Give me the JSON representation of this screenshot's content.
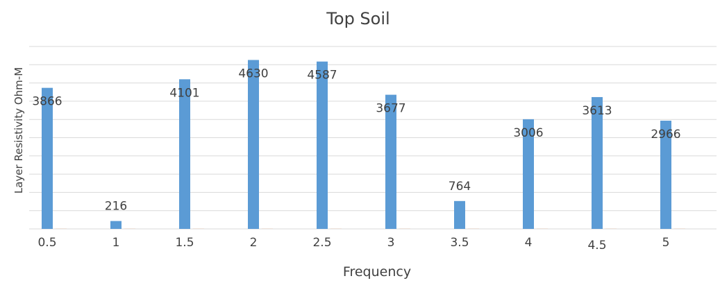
{
  "chart_data": {
    "type": "bar",
    "title": "Top Soil",
    "xlabel": "Frequency",
    "ylabel": "Layer Resistivity Ohm-M",
    "categories": [
      "0.5",
      "1",
      "1.5",
      "2",
      "2.5",
      "3",
      "3.5",
      "4",
      "4.5",
      "5"
    ],
    "series": [
      {
        "values": [
          3866,
          216,
          4101,
          4630,
          4587,
          3677,
          764,
          3006,
          3613,
          2966
        ],
        "color": "#5b9bd5"
      },
      {
        "values": [
          2,
          2,
          2,
          2,
          2,
          2,
          2,
          2,
          2,
          2
        ],
        "color": "#ed7d31"
      }
    ],
    "data_labels": [
      "3866",
      "216",
      "4101",
      "4630",
      "4587",
      "3677",
      "764",
      "3006",
      "3613",
      "2966"
    ],
    "ylim": [
      0,
      5000
    ],
    "grid": true,
    "legend": "none",
    "y_tick_labels_shown": false
  }
}
